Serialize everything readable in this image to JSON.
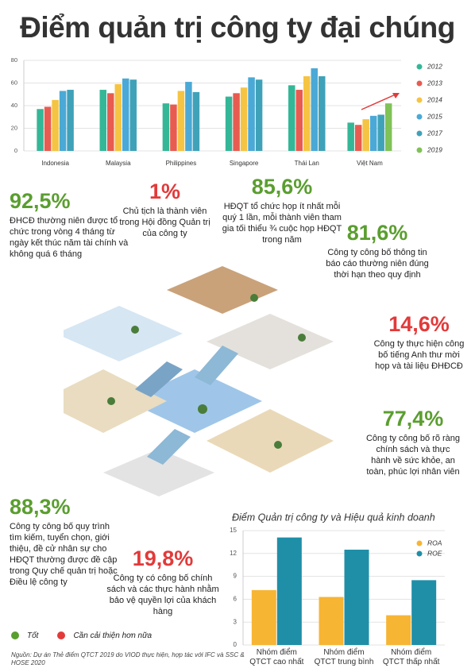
{
  "title": "Điểm quản trị công ty đại chúng",
  "chart_data": [
    {
      "type": "bar",
      "categories": [
        "Indonesia",
        "Malaysia",
        "Philippines",
        "Singapore",
        "Thái Lan",
        "Việt Nam"
      ],
      "series": [
        {
          "name": "2012",
          "color": "#34b797",
          "values": [
            37,
            54,
            42,
            48,
            58,
            25
          ]
        },
        {
          "name": "2013",
          "color": "#e85b50",
          "values": [
            39,
            51,
            41,
            51,
            54,
            23
          ]
        },
        {
          "name": "2014",
          "color": "#f5c443",
          "values": [
            45,
            59,
            53,
            56,
            66,
            28
          ]
        },
        {
          "name": "2015",
          "color": "#4aa9d6",
          "values": [
            53,
            64,
            61,
            65,
            73,
            31
          ]
        },
        {
          "name": "2017",
          "color": "#3fa2b8",
          "values": [
            54,
            63,
            52,
            63,
            66,
            32
          ]
        },
        {
          "name": "2019",
          "color": "#80c257",
          "values": [
            null,
            null,
            null,
            null,
            null,
            42
          ]
        }
      ],
      "ylim": [
        0,
        80
      ],
      "yticks": [
        0,
        20,
        40,
        60,
        80
      ],
      "grid": true
    },
    {
      "type": "bar",
      "title": "Điểm Quản trị công ty và Hiệu quả kinh doanh",
      "categories": [
        "Nhóm điểm QTCT cao nhất",
        "Nhóm điểm QTCT trung bình",
        "Nhóm điểm QTCT thấp nhất"
      ],
      "series": [
        {
          "name": "ROA",
          "color": "#f7b534",
          "values": [
            7.2,
            6.3,
            3.9
          ]
        },
        {
          "name": "ROE",
          "color": "#1f8fa8",
          "values": [
            14.1,
            12.5,
            8.5
          ]
        }
      ],
      "ylim": [
        0,
        15
      ],
      "yticks": [
        0,
        3,
        6,
        9,
        12,
        15
      ],
      "grid": true
    }
  ],
  "stats": [
    {
      "value": "92,5%",
      "color": "#5a9e2f",
      "text": "ĐHCĐ thường niên được tổ chức trong vòng 4 tháng từ ngày kết thúc năm tài chính và không quá 6 tháng"
    },
    {
      "value": "1%",
      "color": "#e23a3a",
      "text": "Chủ tịch là thành viên trong Hội đồng Quản trị của công ty"
    },
    {
      "value": "85,6%",
      "color": "#5a9e2f",
      "text": "HĐQT tổ chức họp ít nhất mỗi quý 1 lần, mỗi thành viên tham gia tối thiểu ¾ cuộc họp HĐQT trong năm"
    },
    {
      "value": "81,6%",
      "color": "#5a9e2f",
      "text": "Công ty công bố thông tin báo cáo thường niên đúng thời hạn theo quy định"
    },
    {
      "value": "14,6%",
      "color": "#e23a3a",
      "text": "Công ty thực hiện công bố tiếng Anh thư mời họp và tài liệu ĐHĐCĐ"
    },
    {
      "value": "77,4%",
      "color": "#5a9e2f",
      "text": "Công ty công bố rõ ràng chính sách và thực hành về sức khỏe, an toàn, phúc lợi nhân viên"
    },
    {
      "value": "88,3%",
      "color": "#5a9e2f",
      "text": "Công ty công bố quy trình tìm kiếm, tuyển chọn, giới thiệu, đề cử nhân sự cho HĐQT thường được đề cập trong Quy chế quản trị hoặc Điều lệ công ty"
    },
    {
      "value": "19,8%",
      "color": "#e23a3a",
      "text": "Công ty có công bố chính sách và các thực hành nhằm bảo vệ quyền lợi của khách hàng"
    }
  ],
  "legend": [
    {
      "label": "Tốt",
      "color": "#5a9e2f"
    },
    {
      "label": "Cần cải thiện hơn nữa",
      "color": "#e23a3a"
    }
  ],
  "source": "Nguồn: Dự án Thẻ điểm QTCT 2019 do VIOD thực hiện, hợp tác với IFC và SSC & HOSE 2020"
}
